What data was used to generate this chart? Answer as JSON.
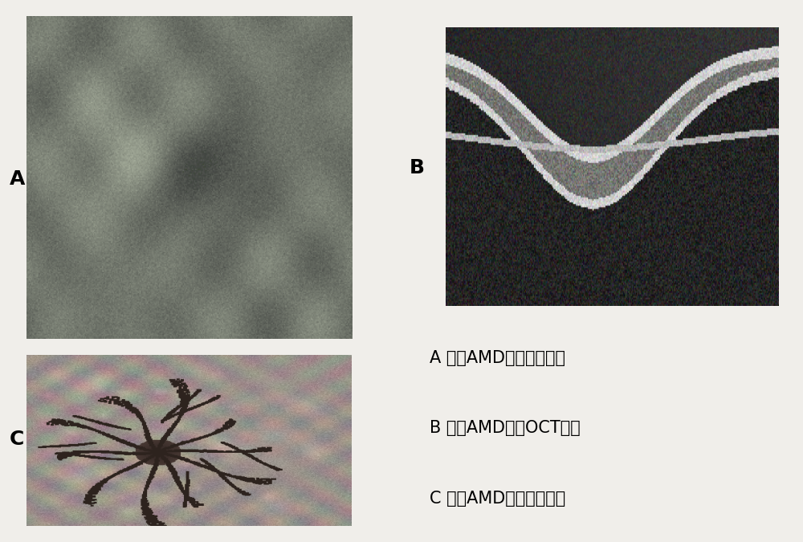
{
  "background_color": "#f0eeea",
  "label_A": "A",
  "label_B": "B",
  "label_C": "C",
  "text_A": "A 湿性AMD患者眼底照相",
  "text_B": "B 湿性AMD患者OCT检查",
  "text_C": "C 湿性AMD患者荧光造影",
  "label_fontsize": 18,
  "text_fontsize": 15
}
